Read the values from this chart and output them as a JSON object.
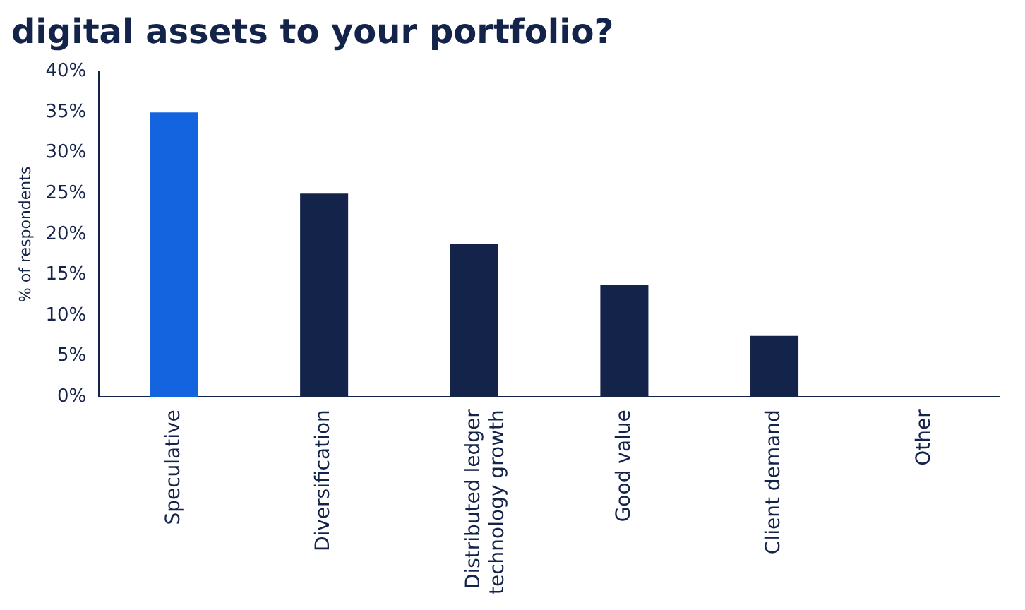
{
  "chart_data": {
    "type": "bar",
    "title": "digital assets to your portfolio?",
    "ylabel": "% of respondents",
    "categories": [
      "Speculative",
      "Diversification",
      "Distributed ledger technology growth",
      "Good value",
      "Client demand",
      "Other"
    ],
    "values": [
      35,
      25,
      18.8,
      13.8,
      7.5,
      0
    ],
    "colors": [
      "#1464e0",
      "#14234a",
      "#14234a",
      "#14234a",
      "#14234a",
      "#14234a"
    ],
    "ylim": [
      0,
      40
    ],
    "yticks": [
      {
        "value": 0,
        "label": "0%"
      },
      {
        "value": 5,
        "label": "5%"
      },
      {
        "value": 10,
        "label": "10%"
      },
      {
        "value": 15,
        "label": "15%"
      },
      {
        "value": 20,
        "label": "20%"
      },
      {
        "value": 25,
        "label": "25%"
      },
      {
        "value": 30,
        "label": "30%"
      },
      {
        "value": 35,
        "label": "35%"
      },
      {
        "value": 40,
        "label": "40%"
      }
    ],
    "grid": false,
    "legend": false
  }
}
